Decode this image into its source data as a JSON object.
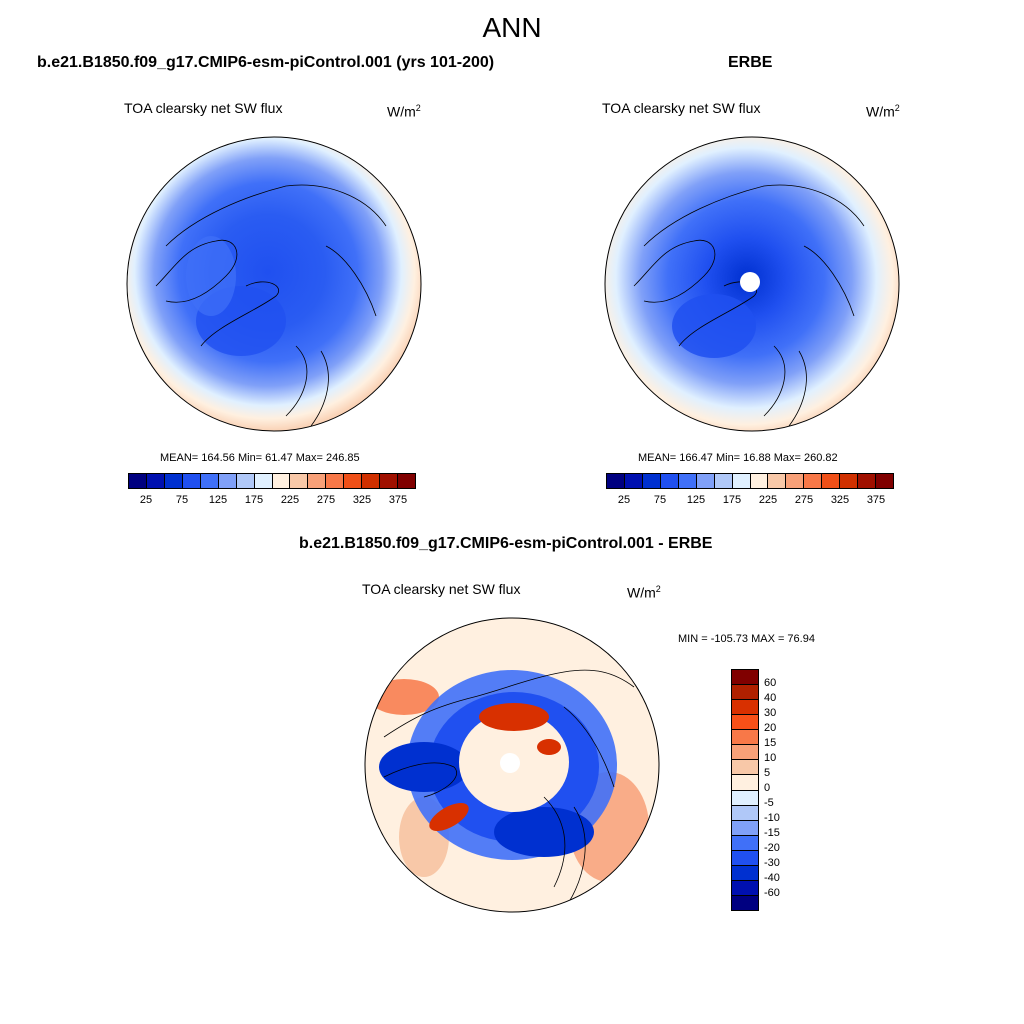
{
  "title": "ANN",
  "panel1": {
    "title": "b.e21.B1850.f09_g17.CMIP6-esm-piControl.001 (yrs 101-200)",
    "field": "TOA clearsky net SW flux",
    "units": "W/m",
    "units_sup": "2",
    "stats": "MEAN= 164.56  Min=  61.47  Max= 246.85"
  },
  "panel2": {
    "title": "ERBE",
    "field": "TOA clearsky net SW flux",
    "units": "W/m",
    "units_sup": "2",
    "stats": "MEAN= 166.47  Min=  16.88  Max= 260.82"
  },
  "panel3": {
    "title": "b.e21.B1850.f09_g17.CMIP6-esm-piControl.001 - ERBE",
    "field": "TOA clearsky net SW flux",
    "units": "W/m",
    "units_sup": "2",
    "stats": "MIN = -105.73 MAX =  76.94"
  },
  "colorbar_abs": {
    "colors": [
      "#000080",
      "#0010b0",
      "#0030d0",
      "#2050f0",
      "#4070f8",
      "#80a0f8",
      "#b0c8f8",
      "#e0f0ff",
      "#fff0e0",
      "#f8c8a8",
      "#f8a078",
      "#f87848",
      "#f05018",
      "#d03000",
      "#a01000",
      "#800000"
    ],
    "labels": [
      "25",
      "75",
      "125",
      "175",
      "225",
      "275",
      "325",
      "375"
    ]
  },
  "colorbar_diff": {
    "colors": [
      "#800000",
      "#b02000",
      "#d83000",
      "#f85018",
      "#f87848",
      "#f8a078",
      "#f8c8a8",
      "#fff0e0",
      "#e0f0ff",
      "#b0c8f8",
      "#80a0f8",
      "#4070f8",
      "#2050f0",
      "#0030d0",
      "#0010b0",
      "#000080"
    ],
    "labels": [
      "60",
      "40",
      "30",
      "20",
      "15",
      "10",
      "5",
      "0",
      "-5",
      "-10",
      "-15",
      "-20",
      "-30",
      "-40",
      "-60"
    ]
  }
}
